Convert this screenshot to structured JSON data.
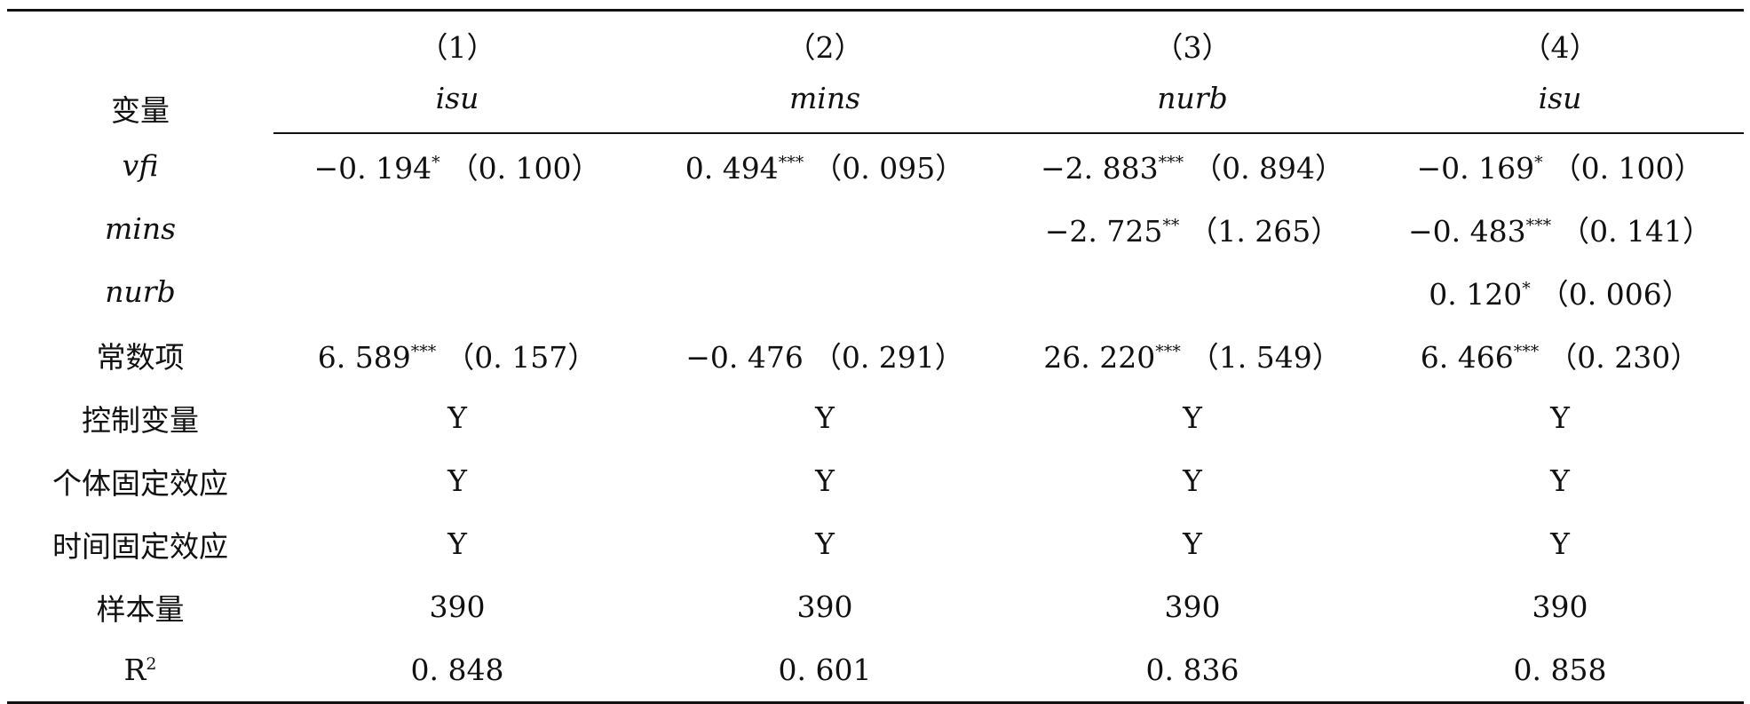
{
  "header": {
    "var_label": "变量",
    "columns": [
      {
        "num": "（1）",
        "dep": "isu"
      },
      {
        "num": "（2）",
        "dep": "mins"
      },
      {
        "num": "（3）",
        "dep": "nurb"
      },
      {
        "num": "（4）",
        "dep": "isu"
      }
    ]
  },
  "rows": [
    {
      "label": "vfi",
      "italic": true,
      "cells": [
        {
          "coef": "−0. 194",
          "stars": "*",
          "se": "（0. 100）"
        },
        {
          "coef": "0. 494",
          "stars": "***",
          "se": "（0. 095）"
        },
        {
          "coef": "−2. 883",
          "stars": "***",
          "se": "（0. 894）"
        },
        {
          "coef": "−0. 169",
          "stars": "*",
          "se": "（0. 100）"
        }
      ]
    },
    {
      "label": "mins",
      "italic": true,
      "cells": [
        {
          "coef": "",
          "stars": "",
          "se": ""
        },
        {
          "coef": "",
          "stars": "",
          "se": ""
        },
        {
          "coef": "−2. 725",
          "stars": "**",
          "se": "（1. 265）"
        },
        {
          "coef": "−0. 483",
          "stars": "***",
          "se": "（0. 141）"
        }
      ]
    },
    {
      "label": "nurb",
      "italic": true,
      "cells": [
        {
          "coef": "",
          "stars": "",
          "se": ""
        },
        {
          "coef": "",
          "stars": "",
          "se": ""
        },
        {
          "coef": "",
          "stars": "",
          "se": ""
        },
        {
          "coef": "0. 120",
          "stars": "*",
          "se": "（0. 006）"
        }
      ]
    },
    {
      "label": "常数项",
      "italic": false,
      "cells": [
        {
          "coef": "6. 589",
          "stars": "***",
          "se": "（0. 157）"
        },
        {
          "coef": "−0. 476",
          "stars": "",
          "se": "（0. 291）"
        },
        {
          "coef": "26. 220",
          "stars": "***",
          "se": "（1. 549）"
        },
        {
          "coef": "6. 466",
          "stars": "***",
          "se": "（0. 230）"
        }
      ]
    },
    {
      "label": "控制变量",
      "italic": false,
      "cells": [
        {
          "coef": "Y",
          "stars": "",
          "se": ""
        },
        {
          "coef": "Y",
          "stars": "",
          "se": ""
        },
        {
          "coef": "Y",
          "stars": "",
          "se": ""
        },
        {
          "coef": "Y",
          "stars": "",
          "se": ""
        }
      ]
    },
    {
      "label": "个体固定效应",
      "italic": false,
      "cells": [
        {
          "coef": "Y",
          "stars": "",
          "se": ""
        },
        {
          "coef": "Y",
          "stars": "",
          "se": ""
        },
        {
          "coef": "Y",
          "stars": "",
          "se": ""
        },
        {
          "coef": "Y",
          "stars": "",
          "se": ""
        }
      ]
    },
    {
      "label": "时间固定效应",
      "italic": false,
      "cells": [
        {
          "coef": "Y",
          "stars": "",
          "se": ""
        },
        {
          "coef": "Y",
          "stars": "",
          "se": ""
        },
        {
          "coef": "Y",
          "stars": "",
          "se": ""
        },
        {
          "coef": "Y",
          "stars": "",
          "se": ""
        }
      ]
    },
    {
      "label": "样本量",
      "italic": false,
      "cells": [
        {
          "coef": "390",
          "stars": "",
          "se": ""
        },
        {
          "coef": "390",
          "stars": "",
          "se": ""
        },
        {
          "coef": "390",
          "stars": "",
          "se": ""
        },
        {
          "coef": "390",
          "stars": "",
          "se": ""
        }
      ]
    },
    {
      "label": "R",
      "label_sup": "2",
      "italic": false,
      "cells": [
        {
          "coef": "0. 848",
          "stars": "",
          "se": ""
        },
        {
          "coef": "0. 601",
          "stars": "",
          "se": ""
        },
        {
          "coef": "0. 836",
          "stars": "",
          "se": ""
        },
        {
          "coef": "0. 858",
          "stars": "",
          "se": ""
        }
      ]
    }
  ]
}
